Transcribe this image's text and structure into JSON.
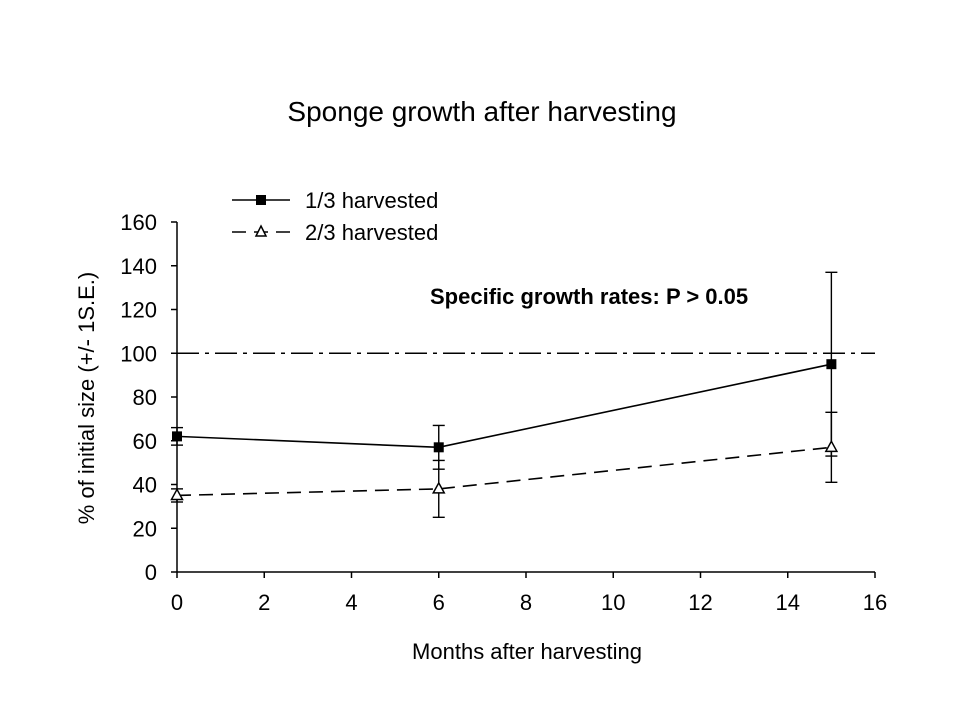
{
  "chart_data": {
    "type": "line",
    "title": "Sponge growth after harvesting",
    "xlabel": "Months after harvesting",
    "ylabel": "% of initial size (+/- 1S.E.)",
    "xlim": [
      0,
      16
    ],
    "ylim": [
      0,
      160
    ],
    "x_ticks": [
      0,
      2,
      4,
      6,
      8,
      10,
      12,
      14,
      16
    ],
    "y_ticks": [
      0,
      20,
      40,
      60,
      80,
      100,
      120,
      140,
      160
    ],
    "grid": false,
    "legend_position": "top-left",
    "series": [
      {
        "name": "1/3 harvested",
        "marker": "filled-square",
        "line_style": "solid",
        "x": [
          0,
          6,
          15
        ],
        "y": [
          62,
          57,
          95
        ],
        "error": [
          4,
          10,
          42
        ]
      },
      {
        "name": "2/3 harvested",
        "marker": "open-triangle",
        "line_style": "dashed",
        "x": [
          0,
          6,
          15
        ],
        "y": [
          35,
          38,
          57
        ],
        "error": [
          3,
          13,
          16
        ]
      }
    ],
    "reference_line": {
      "y": 100,
      "style": "dash-dot"
    },
    "annotation": "Specific growth rates: P > 0.05"
  }
}
